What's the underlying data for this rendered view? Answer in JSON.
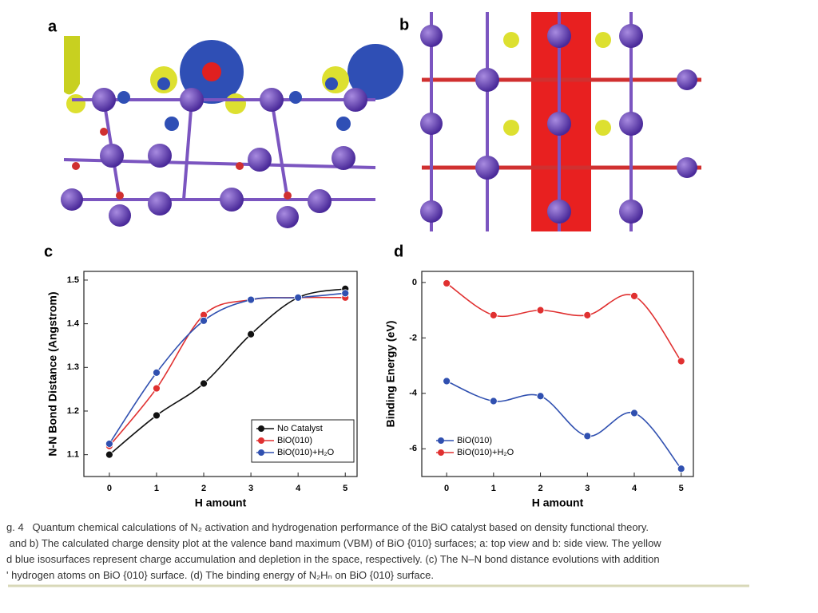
{
  "panels": {
    "a": "a",
    "b": "b"
  },
  "chart_data": [
    {
      "type": "line",
      "panel": "c",
      "xlabel": "H amount",
      "ylabel": "N-N Bond Distance (Angstrom)",
      "x": [
        0,
        1,
        2,
        3,
        4,
        5
      ],
      "xlim": [
        -0.54,
        5.25
      ],
      "xticks": [
        0,
        1,
        2,
        3,
        4,
        5
      ],
      "ylim": [
        1.05,
        1.52
      ],
      "yticks": [
        1.1,
        1.2,
        1.3,
        1.4,
        1.5
      ],
      "legend": "lower right",
      "series": [
        {
          "name": "No Catalyst",
          "color": "#111111",
          "values": [
            1.1,
            1.19,
            1.263,
            1.376,
            1.46,
            1.48
          ]
        },
        {
          "name": "BiO(010)",
          "color": "#e03030",
          "values": [
            1.12,
            1.252,
            1.42,
            1.455,
            1.46,
            1.46
          ]
        },
        {
          "name": "BiO(010)+H₂O",
          "color": "#3050b0",
          "values": [
            1.125,
            1.288,
            1.407,
            1.455,
            1.46,
            1.47
          ]
        }
      ]
    },
    {
      "type": "line",
      "panel": "d",
      "xlabel": "H amount",
      "ylabel": "Binding Energy (eV)",
      "x": [
        0,
        1,
        2,
        3,
        4,
        5
      ],
      "xlim": [
        -0.53,
        5.26
      ],
      "xticks": [
        0,
        1,
        2,
        3,
        4,
        5
      ],
      "ylim": [
        -7,
        0.4
      ],
      "yticks": [
        0,
        -2,
        -4,
        -6
      ],
      "legend": "lower left",
      "series": [
        {
          "name": "BiO(010)",
          "color": "#3050b0",
          "values": [
            -3.56,
            -4.28,
            -4.1,
            -5.54,
            -4.71,
            -6.72
          ]
        },
        {
          "name": "BiO(010)+H₂O",
          "color": "#e03030",
          "values": [
            -0.03,
            -1.18,
            -1.0,
            -1.18,
            -0.49,
            -2.84
          ]
        }
      ]
    }
  ],
  "caption": {
    "lines": [
      "g. 4   Quantum chemical calculations of N₂ activation and hydrogenation performance of the BiO catalyst based on density functional theory.",
      " and b) The calculated charge density plot at the valence band maximum (VBM) of BiO {010} surfaces; a: top view and b: side view. The yellow",
      "d blue isosurfaces represent charge accumulation and depletion in the space, respectively. (c) The N–N bond distance evolutions with addition",
      "' hydrogen atoms on BiO {010} surface. (d) The binding energy of N₂Hₙ on BiO {010} surface."
    ]
  }
}
